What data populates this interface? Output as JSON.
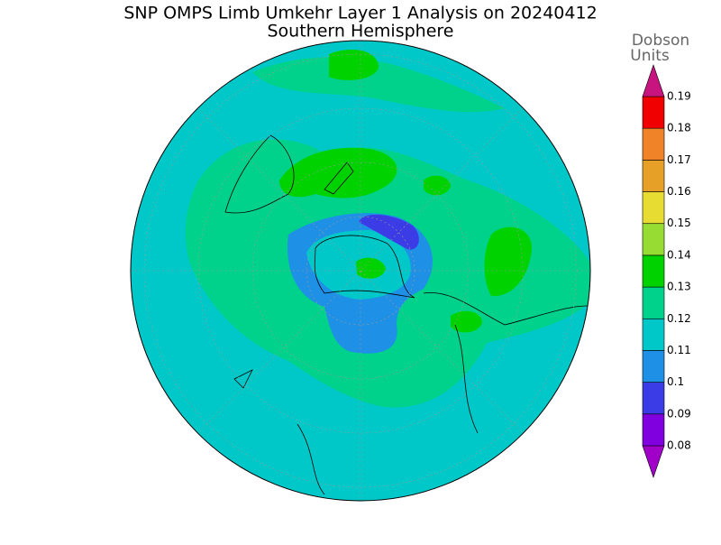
{
  "title": "SNP OMPS Limb Umkehr Layer 1 Analysis on 20240412",
  "subtitle": "Southern Hemisphere",
  "colorbar": {
    "label": [
      "Dobson",
      "Units"
    ],
    "ticks": [
      "0.08",
      "0.09",
      "0.1",
      "0.11",
      "0.12",
      "0.13",
      "0.14",
      "0.15",
      "0.16",
      "0.17",
      "0.18",
      "0.19"
    ],
    "colors": [
      "#a000c8",
      "#8000e0",
      "#3c3ce6",
      "#1e90e6",
      "#00c8c8",
      "#00d28c",
      "#00d200",
      "#96dc32",
      "#e6dc32",
      "#e6a028",
      "#f08228",
      "#f00000",
      "#c8147f"
    ]
  }
}
